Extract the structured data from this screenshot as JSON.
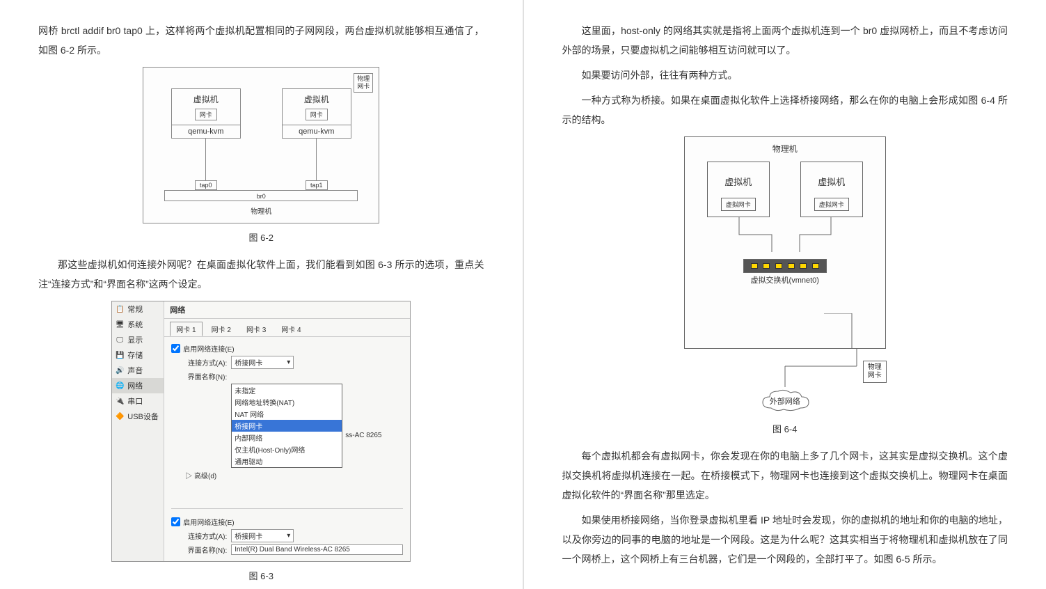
{
  "left": {
    "p1": "网桥 brctl addif br0 tap0 上，这样将两个虚拟机配置相同的子网网段，两台虚拟机就能够相互通信了，如图 6-2 所示。",
    "fig62": {
      "topcard": "物理\n网卡",
      "vm_title": "虚拟机",
      "nic": "网卡",
      "kvm": "qemu-kvm",
      "tap0": "tap0",
      "tap1": "tap1",
      "br0": "br0",
      "host": "物理机",
      "caption": "图 6-2"
    },
    "p2": "那这些虚拟机如何连接外网呢？在桌面虚拟化软件上面，我们能看到如图 6-3 所示的选项，重点关注“连接方式”和“界面名称”这两个设定。",
    "fig63": {
      "sidebar": [
        {
          "icon": "📋",
          "label": "常规"
        },
        {
          "icon": "🖥",
          "label": "系统"
        },
        {
          "icon": "🖵",
          "label": "显示"
        },
        {
          "icon": "💾",
          "label": "存储"
        },
        {
          "icon": "🔊",
          "label": "声音"
        },
        {
          "icon": "🌐",
          "label": "网络"
        },
        {
          "icon": "🔌",
          "label": "串口"
        },
        {
          "icon": "🔶",
          "label": "USB设备"
        }
      ],
      "title": "网络",
      "tabs": [
        "网卡 1",
        "网卡 2",
        "网卡 3",
        "网卡 4"
      ],
      "enable_label": "启用网络连接(E)",
      "conn_label": "连接方式(A):",
      "conn_value": "桥接网卡",
      "iface_label": "界面名称(N):",
      "iface_hint": "ss-AC 8265",
      "adv_label": "▷ 高级(d)",
      "dropdown": [
        "未指定",
        "网络地址转换(NAT)",
        "NAT 网络",
        "桥接网卡",
        "内部网络",
        "仅主机(Host-Only)网络",
        "通用驱动"
      ],
      "section2_conn": "桥接网卡",
      "section2_iface": "Intel(R) Dual Band Wireless-AC 8265",
      "caption": "图 6-3"
    }
  },
  "right": {
    "p1": "这里面，host-only 的网络其实就是指将上面两个虚拟机连到一个 br0 虚拟网桥上，而且不考虑访问外部的场景，只要虚拟机之间能够相互访问就可以了。",
    "p2": "如果要访问外部，往往有两种方式。",
    "p3": "一种方式称为桥接。如果在桌面虚拟化软件上选择桥接网络，那么在你的电脑上会形成如图 6-4 所示的结构。",
    "fig64": {
      "host": "物理机",
      "vm": "虚拟机",
      "vnic": "虚拟网卡",
      "switch": "虚拟交换机(vmnet0)",
      "physnic": "物理\n网卡",
      "cloud": "外部网络",
      "caption": "图 6-4"
    },
    "p4": "每个虚拟机都会有虚拟网卡，你会发现在你的电脑上多了几个网卡，这其实是虚拟交换机。这个虚拟交换机将虚拟机连接在一起。在桥接模式下，物理网卡也连接到这个虚拟交换机上。物理网卡在桌面虚拟化软件的“界面名称”那里选定。",
    "p5": "如果使用桥接网络，当你登录虚拟机里看 IP 地址时会发现，你的虚拟机的地址和你的电脑的地址，以及你旁边的同事的电脑的地址是一个网段。这是为什么呢？这其实相当于将物理机和虚拟机放在了同一个网桥上，这个网桥上有三台机器，它们是一个网段的，全部打平了。如图 6-5 所示。"
  }
}
